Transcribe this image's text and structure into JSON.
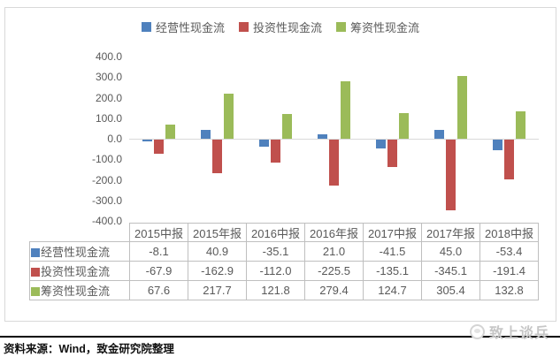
{
  "legend": {
    "items": [
      {
        "label": "经营性现金流",
        "color": "#4F81BD"
      },
      {
        "label": "投资性现金流",
        "color": "#C0504D"
      },
      {
        "label": "筹资性现金流",
        "color": "#9BBB59"
      }
    ]
  },
  "chart_data": {
    "type": "bar",
    "categories": [
      "2015中报",
      "2015年报",
      "2016中报",
      "2016年报",
      "2017中报",
      "2017年报",
      "2018中报"
    ],
    "series": [
      {
        "name": "经营性现金流",
        "color": "#4F81BD",
        "values": [
          -8.1,
          40.9,
          -35.1,
          21.0,
          -41.5,
          45.0,
          -53.4
        ]
      },
      {
        "name": "投资性现金流",
        "color": "#C0504D",
        "values": [
          -67.9,
          -162.9,
          -112.0,
          -225.5,
          -135.1,
          -345.1,
          -191.4
        ]
      },
      {
        "name": "筹资性现金流",
        "color": "#9BBB59",
        "values": [
          67.6,
          217.7,
          121.8,
          279.4,
          124.7,
          305.4,
          132.8
        ]
      }
    ],
    "title": "",
    "xlabel": "",
    "ylabel": "",
    "ylim": [
      -400,
      400
    ],
    "ytick_step": 100,
    "ytick_labels": [
      "400.0",
      "300.0",
      "200.0",
      "100.0",
      "0.0",
      "-100.0",
      "-200.0",
      "-300.0",
      "-400.0"
    ],
    "grid": false,
    "legend_position": "top-center",
    "shows_data_table": true
  },
  "table": {
    "corner_label": "",
    "columns": [
      "2015中报",
      "2015年报",
      "2016中报",
      "2016年报",
      "2017中报",
      "2017年报",
      "2018中报"
    ],
    "rows": [
      {
        "label": "经营性现金流",
        "marker_color": "#4F81BD",
        "values": [
          "-8.1",
          "40.9",
          "-35.1",
          "21.0",
          "-41.5",
          "45.0",
          "-53.4"
        ]
      },
      {
        "label": "投资性现金流",
        "marker_color": "#C0504D",
        "values": [
          "-67.9",
          "-162.9",
          "-112.0",
          "-225.5",
          "-135.1",
          "-345.1",
          "-191.4"
        ]
      },
      {
        "label": "筹资性现金流",
        "marker_color": "#9BBB59",
        "values": [
          "67.6",
          "217.7",
          "121.8",
          "279.4",
          "124.7",
          "305.4",
          "132.8"
        ]
      }
    ]
  },
  "footer": {
    "source": "资料来源：Wind，致金研究院整理",
    "logo_text": "致上谈兵",
    "logo_icon": "mascot-circle-icon"
  }
}
